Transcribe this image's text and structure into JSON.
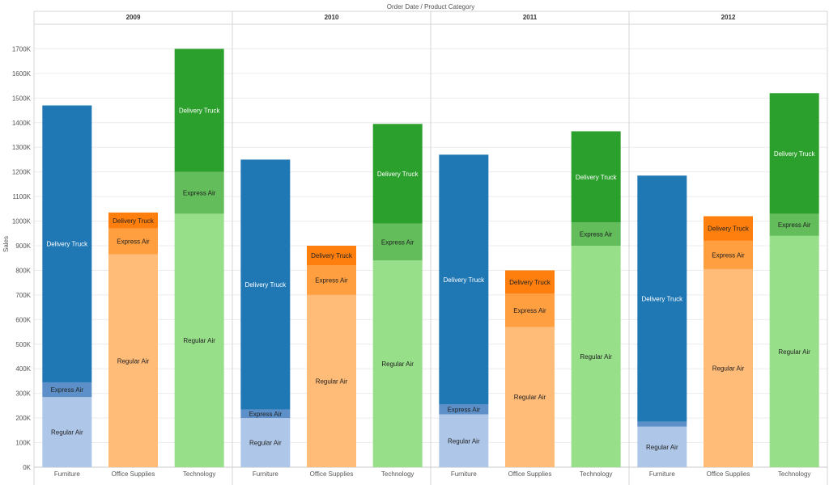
{
  "chart_data": {
    "type": "bar",
    "stacked": true,
    "title": "Order Date  /  Product Category",
    "ylabel": "Sales",
    "ylim": [
      0,
      1800000
    ],
    "yticks": [
      0,
      100000,
      200000,
      300000,
      400000,
      500000,
      600000,
      700000,
      800000,
      900000,
      1000000,
      1100000,
      1200000,
      1300000,
      1400000,
      1500000,
      1600000,
      1700000
    ],
    "ytick_labels": [
      "0K",
      "100K",
      "200K",
      "300K",
      "400K",
      "500K",
      "600K",
      "700K",
      "800K",
      "900K",
      "1000K",
      "1100K",
      "1200K",
      "1300K",
      "1400K",
      "1500K",
      "1600K",
      "1700K"
    ],
    "years": [
      "2009",
      "2010",
      "2011",
      "2012"
    ],
    "categories": [
      "Furniture",
      "Office Supplies",
      "Technology"
    ],
    "segments": [
      "Regular Air",
      "Express Air",
      "Delivery Truck"
    ],
    "colors": {
      "Furniture": [
        "#aec7e8",
        "#5d90c8",
        "#1f77b4"
      ],
      "Office Supplies": [
        "#ffbb78",
        "#ff9f40",
        "#ff7f0e"
      ],
      "Technology": [
        "#98df8a",
        "#62bd5a",
        "#2ca02c"
      ]
    },
    "grid": true,
    "values": {
      "2009": {
        "Furniture": {
          "Regular Air": 285000,
          "Express Air": 60000,
          "Delivery Truck": 1125000
        },
        "Office Supplies": {
          "Regular Air": 865000,
          "Express Air": 105000,
          "Delivery Truck": 65000
        },
        "Technology": {
          "Regular Air": 1030000,
          "Express Air": 170000,
          "Delivery Truck": 500000
        }
      },
      "2010": {
        "Furniture": {
          "Regular Air": 200000,
          "Express Air": 35000,
          "Delivery Truck": 1015000
        },
        "Office Supplies": {
          "Regular Air": 700000,
          "Express Air": 120000,
          "Delivery Truck": 80000
        },
        "Technology": {
          "Regular Air": 840000,
          "Express Air": 150000,
          "Delivery Truck": 405000
        }
      },
      "2011": {
        "Furniture": {
          "Regular Air": 215000,
          "Express Air": 40000,
          "Delivery Truck": 1015000
        },
        "Office Supplies": {
          "Regular Air": 570000,
          "Express Air": 135000,
          "Delivery Truck": 95000
        },
        "Technology": {
          "Regular Air": 900000,
          "Express Air": 95000,
          "Delivery Truck": 370000
        }
      },
      "2012": {
        "Furniture": {
          "Regular Air": 165000,
          "Express Air": 20000,
          "Delivery Truck": 1000000
        },
        "Office Supplies": {
          "Regular Air": 805000,
          "Express Air": 115000,
          "Delivery Truck": 100000
        },
        "Technology": {
          "Regular Air": 940000,
          "Express Air": 90000,
          "Delivery Truck": 490000
        }
      }
    },
    "small_segments_unlabeled": [
      [
        "2012",
        "Furniture",
        "Express Air"
      ]
    ]
  }
}
